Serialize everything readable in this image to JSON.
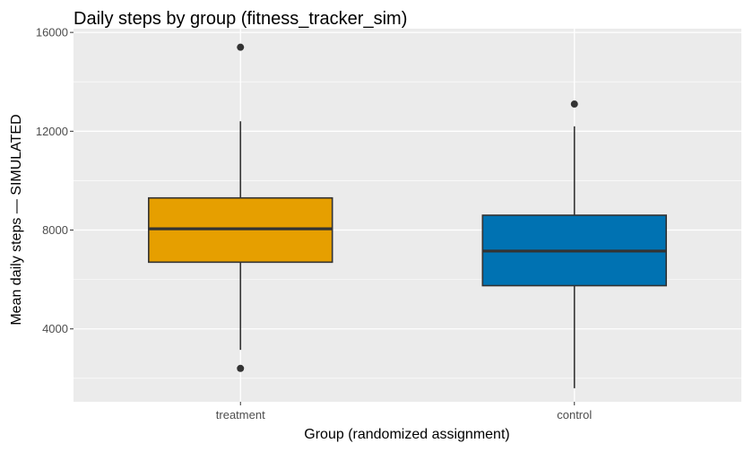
{
  "chart_data": {
    "type": "boxplot",
    "title": "Daily steps by group (fitness_tracker_sim)",
    "xlabel": "Group (randomized assignment)",
    "ylabel": "Mean daily steps — SIMULATED",
    "categories": [
      "treatment",
      "control"
    ],
    "ylim": [
      1050,
      16150
    ],
    "yticks": [
      4000,
      8000,
      12000,
      16000
    ],
    "ytick_labels": [
      "4000",
      "8000",
      "12000",
      "16000"
    ],
    "grid": true,
    "legend": "none",
    "boxes": [
      {
        "category": "treatment",
        "color": "#E69F00",
        "whisker_low": 3150,
        "q1": 6700,
        "median": 8050,
        "q3": 9300,
        "whisker_high": 12400,
        "outliers": [
          15400,
          2400
        ]
      },
      {
        "category": "control",
        "color": "#0072B2",
        "whisker_low": 1600,
        "q1": 5750,
        "median": 7150,
        "q3": 8600,
        "whisker_high": 12200,
        "outliers": [
          13100
        ]
      }
    ]
  },
  "colors": {
    "panel_background": "#EBEBEB",
    "grid_major": "#FFFFFF",
    "box_outline": "#333333"
  }
}
